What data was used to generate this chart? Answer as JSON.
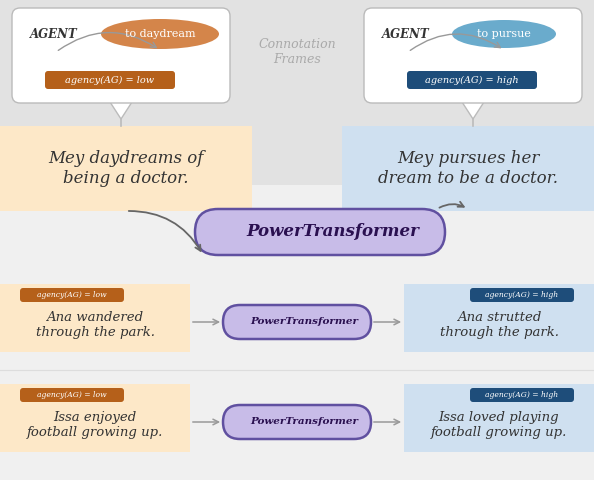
{
  "bg_top_color": "#e2e2e2",
  "bg_bottom_color": "#f5f5f5",
  "orange_light": "#fde8c8",
  "blue_light": "#cfe0f0",
  "orange_dark": "#b5601a",
  "blue_dark": "#1e4d7a",
  "verb_orange_fill": "#d4854a",
  "verb_blue_fill": "#6aabcc",
  "purple_box_fill": "#c8bce8",
  "purple_box_edge": "#6050a0",
  "white": "#ffffff",
  "bubble_edge": "#bbbbbb",
  "arrow_color": "#888888",
  "connotation_color": "#aaaaaa",
  "text_main": "#333333",
  "label_text": "#ffffff",
  "title_big": "PowerTransformer",
  "title_small": "PowerTransformer",
  "agent_label": "AGENT",
  "agency_low": "agency(AG) = low",
  "agency_high": "agency(AG) = high",
  "verb_left": "to daydream",
  "verb_right": "to pursue",
  "connotation_label": "Connotation\nFrames",
  "ex1_left": "Mey daydreams of\nbeing a doctor.",
  "ex1_right": "Mey pursues her\ndream to be a doctor.",
  "ex2_left": "Ana wandered\nthrough the park.",
  "ex2_right": "Ana strutted\nthrough the park.",
  "ex3_left": "Issa enjoyed\nfootball growing up.",
  "ex3_right": "Issa loved playing\nfootball growing up."
}
